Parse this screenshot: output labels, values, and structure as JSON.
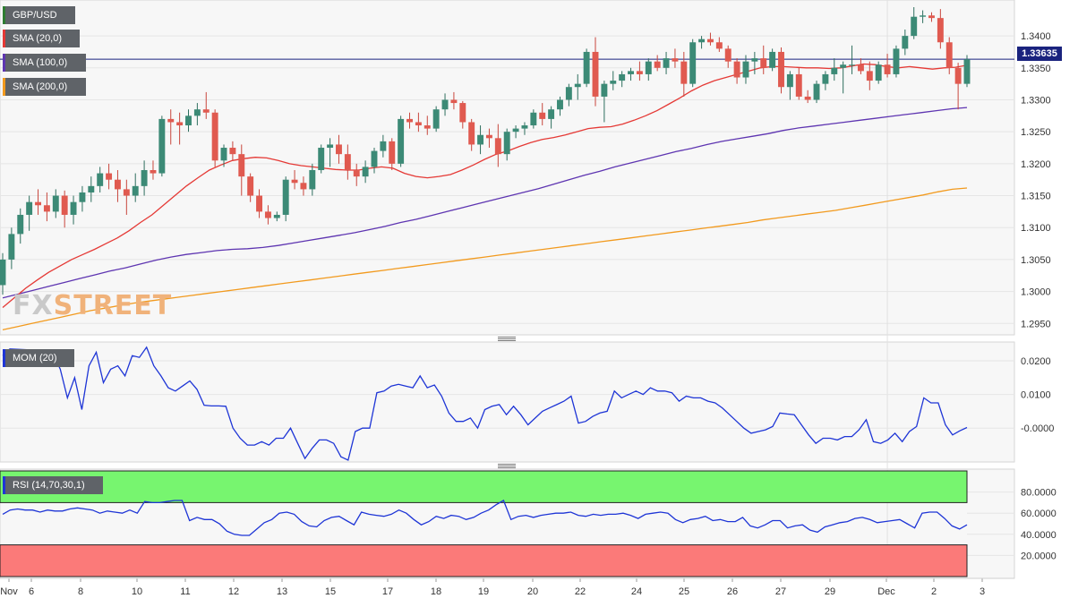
{
  "chart_data": [
    {
      "type": "candlestick",
      "title": "GBP/USD",
      "overlays": [
        {
          "name": "SMA (20,0)",
          "color": "#e53935"
        },
        {
          "name": "SMA (100,0)",
          "color": "#5e35b1"
        },
        {
          "name": "SMA (200,0)",
          "color": "#f29a1e"
        }
      ],
      "last_price": "1.33635",
      "ylim": [
        1.2935,
        1.3445
      ],
      "y_ticks": [
        "1.3400",
        "1.3350",
        "1.3300",
        "1.3250",
        "1.3200",
        "1.3150",
        "1.3100",
        "1.3050",
        "1.3000",
        "1.2950"
      ],
      "x_labels": [
        "Nov",
        "6",
        "8",
        "10",
        "11",
        "12",
        "13",
        "15",
        "17",
        "18",
        "19",
        "20",
        "22",
        "24",
        "25",
        "26",
        "27",
        "29",
        "Dec",
        "2",
        "3"
      ],
      "candles_ohlc": [
        [
          1.301,
          1.306,
          1.2995,
          1.305
        ],
        [
          1.305,
          1.31,
          1.3035,
          1.309
        ],
        [
          1.309,
          1.313,
          1.3075,
          1.312
        ],
        [
          1.312,
          1.315,
          1.3095,
          1.314
        ],
        [
          1.314,
          1.316,
          1.312,
          1.3135
        ],
        [
          1.3135,
          1.3155,
          1.311,
          1.3125
        ],
        [
          1.3125,
          1.316,
          1.3115,
          1.315
        ],
        [
          1.315,
          1.3158,
          1.31,
          1.312
        ],
        [
          1.312,
          1.315,
          1.3105,
          1.314
        ],
        [
          1.314,
          1.3165,
          1.3125,
          1.3155
        ],
        [
          1.3155,
          1.318,
          1.314,
          1.3165
        ],
        [
          1.3165,
          1.3195,
          1.3155,
          1.3185
        ],
        [
          1.3185,
          1.32,
          1.316,
          1.3175
        ],
        [
          1.3175,
          1.319,
          1.314,
          1.316
        ],
        [
          1.316,
          1.3175,
          1.312,
          1.315
        ],
        [
          1.315,
          1.3185,
          1.314,
          1.3165
        ],
        [
          1.3165,
          1.3205,
          1.315,
          1.319
        ],
        [
          1.319,
          1.3205,
          1.3175,
          1.3185
        ],
        [
          1.3185,
          1.3275,
          1.318,
          1.327
        ],
        [
          1.327,
          1.3285,
          1.323,
          1.3265
        ],
        [
          1.3265,
          1.328,
          1.323,
          1.326
        ],
        [
          1.326,
          1.3285,
          1.325,
          1.3275
        ],
        [
          1.3275,
          1.3295,
          1.326,
          1.3285
        ],
        [
          1.3285,
          1.3312,
          1.327,
          1.328
        ],
        [
          1.328,
          1.3285,
          1.3195,
          1.3205
        ],
        [
          1.3205,
          1.323,
          1.3195,
          1.3225
        ],
        [
          1.3225,
          1.3235,
          1.3205,
          1.3215
        ],
        [
          1.3215,
          1.323,
          1.315,
          1.318
        ],
        [
          1.318,
          1.3185,
          1.314,
          1.315
        ],
        [
          1.315,
          1.316,
          1.3115,
          1.3125
        ],
        [
          1.3125,
          1.3135,
          1.3105,
          1.3115
        ],
        [
          1.3115,
          1.3125,
          1.311,
          1.312
        ],
        [
          1.312,
          1.318,
          1.311,
          1.3175
        ],
        [
          1.3175,
          1.319,
          1.316,
          1.317
        ],
        [
          1.317,
          1.318,
          1.315,
          1.316
        ],
        [
          1.316,
          1.32,
          1.315,
          1.319
        ],
        [
          1.319,
          1.323,
          1.3185,
          1.3225
        ],
        [
          1.3225,
          1.324,
          1.3195,
          1.323
        ],
        [
          1.323,
          1.3245,
          1.32,
          1.3215
        ],
        [
          1.3215,
          1.323,
          1.3175,
          1.319
        ],
        [
          1.319,
          1.32,
          1.3165,
          1.318
        ],
        [
          1.318,
          1.3205,
          1.317,
          1.3195
        ],
        [
          1.3195,
          1.3225,
          1.3185,
          1.322
        ],
        [
          1.322,
          1.3245,
          1.321,
          1.3235
        ],
        [
          1.3235,
          1.324,
          1.319,
          1.32
        ],
        [
          1.32,
          1.3275,
          1.3195,
          1.327
        ],
        [
          1.327,
          1.328,
          1.3255,
          1.3265
        ],
        [
          1.3265,
          1.328,
          1.325,
          1.326
        ],
        [
          1.326,
          1.3275,
          1.3245,
          1.3255
        ],
        [
          1.3255,
          1.329,
          1.325,
          1.3285
        ],
        [
          1.3285,
          1.331,
          1.3275,
          1.33
        ],
        [
          1.33,
          1.3312,
          1.3285,
          1.3295
        ],
        [
          1.3295,
          1.3298,
          1.3255,
          1.3265
        ],
        [
          1.3265,
          1.327,
          1.322,
          1.323
        ],
        [
          1.323,
          1.326,
          1.3215,
          1.3245
        ],
        [
          1.3245,
          1.3255,
          1.3225,
          1.324
        ],
        [
          1.324,
          1.3262,
          1.3195,
          1.3215
        ],
        [
          1.3215,
          1.3255,
          1.3205,
          1.325
        ],
        [
          1.325,
          1.326,
          1.324,
          1.3255
        ],
        [
          1.3255,
          1.3265,
          1.3245,
          1.326
        ],
        [
          1.326,
          1.3285,
          1.3255,
          1.328
        ],
        [
          1.328,
          1.3295,
          1.326,
          1.327
        ],
        [
          1.327,
          1.329,
          1.3255,
          1.3285
        ],
        [
          1.3285,
          1.3305,
          1.3275,
          1.33
        ],
        [
          1.33,
          1.3325,
          1.329,
          1.332
        ],
        [
          1.332,
          1.334,
          1.33,
          1.3325
        ],
        [
          1.3325,
          1.338,
          1.332,
          1.3375
        ],
        [
          1.3375,
          1.3398,
          1.329,
          1.3305
        ],
        [
          1.3305,
          1.333,
          1.3265,
          1.3325
        ],
        [
          1.3325,
          1.3345,
          1.3315,
          1.333
        ],
        [
          1.333,
          1.3345,
          1.332,
          1.334
        ],
        [
          1.334,
          1.335,
          1.333,
          1.3345
        ],
        [
          1.3345,
          1.336,
          1.333,
          1.334
        ],
        [
          1.334,
          1.3365,
          1.333,
          1.336
        ],
        [
          1.336,
          1.337,
          1.3345,
          1.335
        ],
        [
          1.335,
          1.3375,
          1.334,
          1.3365
        ],
        [
          1.3365,
          1.338,
          1.335,
          1.336
        ],
        [
          1.336,
          1.3375,
          1.3305,
          1.3325
        ],
        [
          1.3325,
          1.3395,
          1.332,
          1.339
        ],
        [
          1.339,
          1.34,
          1.338,
          1.3395
        ],
        [
          1.3395,
          1.3405,
          1.3385,
          1.339
        ],
        [
          1.339,
          1.3398,
          1.3375,
          1.338
        ],
        [
          1.338,
          1.3385,
          1.335,
          1.336
        ],
        [
          1.336,
          1.3365,
          1.3325,
          1.3335
        ],
        [
          1.3335,
          1.337,
          1.3325,
          1.336
        ],
        [
          1.336,
          1.3375,
          1.334,
          1.3365
        ],
        [
          1.3365,
          1.3385,
          1.334,
          1.335
        ],
        [
          1.335,
          1.338,
          1.3345,
          1.3375
        ],
        [
          1.3375,
          1.3382,
          1.331,
          1.332
        ],
        [
          1.332,
          1.3345,
          1.33,
          1.334
        ],
        [
          1.334,
          1.335,
          1.33,
          1.3305
        ],
        [
          1.3305,
          1.3315,
          1.3295,
          1.33
        ],
        [
          1.33,
          1.333,
          1.3295,
          1.3325
        ],
        [
          1.3325,
          1.3345,
          1.3315,
          1.334
        ],
        [
          1.334,
          1.3365,
          1.333,
          1.335
        ],
        [
          1.335,
          1.336,
          1.331,
          1.3355
        ],
        [
          1.3355,
          1.3385,
          1.334,
          1.3355
        ],
        [
          1.3355,
          1.3365,
          1.334,
          1.3345
        ],
        [
          1.3345,
          1.336,
          1.3315,
          1.333
        ],
        [
          1.333,
          1.336,
          1.3325,
          1.3355
        ],
        [
          1.3355,
          1.3372,
          1.3335,
          1.334
        ],
        [
          1.334,
          1.3385,
          1.3335,
          1.338
        ],
        [
          1.338,
          1.341,
          1.337,
          1.34
        ],
        [
          1.34,
          1.3445,
          1.3395,
          1.343
        ],
        [
          1.343,
          1.344,
          1.342,
          1.3432
        ],
        [
          1.3432,
          1.3437,
          1.3422,
          1.3428
        ],
        [
          1.3428,
          1.3442,
          1.338,
          1.339
        ],
        [
          1.339,
          1.3398,
          1.334,
          1.335
        ],
        [
          1.335,
          1.3358,
          1.3285,
          1.3325
        ],
        [
          1.3325,
          1.337,
          1.332,
          1.33635
        ]
      ],
      "sma20": [
        1.2975,
        1.299,
        1.3005,
        1.3018,
        1.303,
        1.304,
        1.305,
        1.3058,
        1.3066,
        1.3075,
        1.3084,
        1.3095,
        1.3108,
        1.312,
        1.3135,
        1.315,
        1.3165,
        1.3178,
        1.319,
        1.3198,
        1.3205,
        1.3208,
        1.321,
        1.3209,
        1.3205,
        1.32,
        1.3197,
        1.3195,
        1.3193,
        1.3191,
        1.319,
        1.319,
        1.3193,
        1.3195,
        1.3193,
        1.3185,
        1.318,
        1.3178,
        1.318,
        1.3183,
        1.319,
        1.3198,
        1.3207,
        1.3215,
        1.322,
        1.3227,
        1.3233,
        1.3238,
        1.3241,
        1.3245,
        1.325,
        1.3255,
        1.3257,
        1.3258,
        1.3262,
        1.3268,
        1.3275,
        1.3283,
        1.3293,
        1.3303,
        1.3314,
        1.3323,
        1.333,
        1.3335,
        1.334,
        1.3345,
        1.335,
        1.3352,
        1.3352,
        1.3351,
        1.335,
        1.335,
        1.3349,
        1.335,
        1.3353,
        1.3356,
        1.3355,
        1.3352,
        1.335,
        1.3352,
        1.335,
        1.3348,
        1.335,
        1.3351,
        1.3354
      ],
      "sma100": [
        1.299,
        1.2996,
        1.3002,
        1.3008,
        1.3014,
        1.302,
        1.3026,
        1.3032,
        1.3037,
        1.3043,
        1.3049,
        1.3054,
        1.3058,
        1.3061,
        1.3064,
        1.3066,
        1.3067,
        1.3069,
        1.3072,
        1.3076,
        1.308,
        1.3084,
        1.3088,
        1.3092,
        1.3097,
        1.3102,
        1.3108,
        1.3113,
        1.3119,
        1.3125,
        1.3131,
        1.3137,
        1.3143,
        1.3149,
        1.3155,
        1.3161,
        1.3168,
        1.3175,
        1.3182,
        1.3188,
        1.3195,
        1.3201,
        1.3207,
        1.3213,
        1.3219,
        1.3224,
        1.323,
        1.3235,
        1.3239,
        1.3243,
        1.3247,
        1.3252,
        1.3256,
        1.3259,
        1.3262,
        1.3265,
        1.3268,
        1.3271,
        1.3274,
        1.3277,
        1.328,
        1.3283,
        1.3286,
        1.3288
      ],
      "sma200": [
        1.294,
        1.2945,
        1.295,
        1.2955,
        1.296,
        1.2965,
        1.297,
        1.2974,
        1.2978,
        1.2982,
        1.2985,
        1.2988,
        1.2991,
        1.2994,
        1.2997,
        1.3,
        1.3003,
        1.3006,
        1.3009,
        1.3012,
        1.3015,
        1.3018,
        1.3021,
        1.3024,
        1.3027,
        1.303,
        1.3033,
        1.3036,
        1.3039,
        1.3042,
        1.3045,
        1.3048,
        1.3051,
        1.3054,
        1.3057,
        1.306,
        1.3063,
        1.3066,
        1.3069,
        1.3072,
        1.3075,
        1.3078,
        1.3081,
        1.3084,
        1.3087,
        1.309,
        1.3093,
        1.3096,
        1.3099,
        1.3102,
        1.3105,
        1.3108,
        1.3112,
        1.3115,
        1.3118,
        1.3121,
        1.3124,
        1.3127,
        1.3131,
        1.3135,
        1.3139,
        1.3143,
        1.3147,
        1.3151,
        1.3156,
        1.316,
        1.3162
      ]
    },
    {
      "type": "line",
      "title": "MOM (20)",
      "color": "#1e35d6",
      "ylim": [
        -0.0095,
        0.0245
      ],
      "y_ticks": [
        "0.0200",
        "0.0100",
        "-0.0000"
      ],
      "values": [
        0.0215,
        0.0235,
        0.0234,
        0.0233,
        0.0232,
        0.0231,
        0.0225,
        0.022,
        0.0175,
        0.009,
        0.015,
        0.0055,
        0.0185,
        0.0225,
        0.0135,
        0.0175,
        0.0185,
        0.0155,
        0.0215,
        0.021,
        0.024,
        0.0185,
        0.0155,
        0.012,
        0.011,
        0.0125,
        0.014,
        0.0115,
        0.0068,
        0.0066,
        0.0066,
        0.0065,
        0.0,
        -0.003,
        -0.005,
        -0.005,
        -0.004,
        -0.005,
        -0.003,
        -0.003,
        0.0,
        -0.0045,
        -0.009,
        -0.006,
        -0.0035,
        -0.0035,
        -0.0045,
        -0.0085,
        -0.0095,
        -0.001,
        0.0,
        0.0,
        0.0105,
        0.011,
        0.0125,
        0.013,
        0.0125,
        0.012,
        0.0155,
        0.012,
        0.0128,
        0.0095,
        0.0045,
        0.002,
        0.002,
        0.003,
        0.0,
        0.0055,
        0.0065,
        0.007,
        0.004,
        0.0065,
        0.004,
        0.001,
        0.003,
        0.005,
        0.006,
        0.007,
        0.008,
        0.0095,
        0.0015,
        0.002,
        0.0035,
        0.0045,
        0.005,
        0.011,
        0.009,
        0.01,
        0.011,
        0.01,
        0.012,
        0.011,
        0.011,
        0.0105,
        0.008,
        0.0095,
        0.009,
        0.009,
        0.008,
        0.0075,
        0.006,
        0.004,
        0.002,
        0.0,
        -0.0015,
        -0.001,
        -0.0005,
        0.0005,
        0.0045,
        0.0042,
        0.004,
        0.001,
        -0.002,
        -0.0045,
        -0.003,
        -0.003,
        -0.0035,
        -0.0025,
        -0.0025,
        -0.0005,
        0.0025,
        -0.004,
        -0.0045,
        -0.0035,
        -0.0015,
        -0.004,
        -0.001,
        0.0005,
        0.009,
        0.0075,
        0.0075,
        0.001,
        -0.002,
        -0.0008,
        0.0002
      ]
    },
    {
      "type": "line",
      "title": "RSI (14,70,30,1)",
      "color": "#1e35d6",
      "ylim": [
        0,
        100
      ],
      "y_ticks": [
        "80.0000",
        "60.0000",
        "40.0000",
        "20.0000"
      ],
      "overbought_zone": [
        70,
        100
      ],
      "oversold_zone": [
        0,
        30
      ],
      "overbought_color": "#77f56f",
      "oversold_color": "#fb7a79",
      "values": [
        59,
        63,
        64,
        63,
        63,
        61,
        63,
        62,
        62,
        64,
        65,
        64,
        63,
        60,
        62,
        61,
        60,
        63,
        60,
        71,
        70,
        70,
        71,
        72,
        72,
        53,
        56,
        54,
        54,
        50,
        43,
        40,
        39,
        39,
        45,
        51,
        54,
        60,
        61,
        59,
        52,
        48,
        47,
        53,
        56,
        57,
        53,
        49,
        61,
        59,
        58,
        57,
        59,
        63,
        60,
        54,
        49,
        52,
        57,
        55,
        58,
        57,
        54,
        56,
        60,
        63,
        68,
        72,
        54,
        57,
        58,
        56,
        58,
        59,
        60,
        60,
        61,
        58,
        57,
        59,
        58,
        59,
        59,
        60,
        58,
        55,
        59,
        60,
        61,
        60,
        54,
        51,
        54,
        55,
        57,
        53,
        54,
        52,
        52,
        56,
        48,
        46,
        49,
        53,
        53,
        46,
        48,
        49,
        44,
        42,
        47,
        49,
        51,
        52,
        55,
        56,
        54,
        51,
        52,
        53,
        54,
        50,
        46,
        60,
        61,
        61,
        55,
        48,
        45,
        49
      ]
    }
  ]
}
